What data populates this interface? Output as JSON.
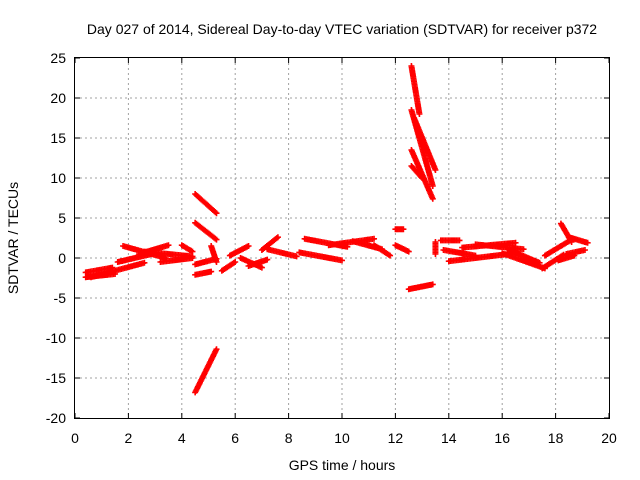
{
  "chart_data": {
    "type": "scatter",
    "title": "Day 027 of 2014, Sidereal Day-to-day VTEC variation (SDTVAR) for receiver p372",
    "xlabel": "GPS time / hours",
    "ylabel": "SDTVAR / TECUs",
    "xlim": [
      0,
      20
    ],
    "ylim": [
      -20,
      25
    ],
    "xticks": [
      "0",
      "2",
      "4",
      "6",
      "8",
      "10",
      "12",
      "14",
      "16",
      "18",
      "20"
    ],
    "yticks": [
      "25",
      "20",
      "15",
      "10",
      "5",
      "0",
      "-5",
      "-10",
      "-15",
      "-20"
    ],
    "grid": true,
    "marker": "+",
    "color": "#ff0000",
    "series": [
      {
        "name": "p372",
        "segments": [
          {
            "x": [
              0.4,
              1.4
            ],
            "y": [
              -1.8,
              -1.2
            ]
          },
          {
            "x": [
              0.4,
              1.5
            ],
            "y": [
              -2.4,
              -2.0
            ]
          },
          {
            "x": [
              0.6,
              2.6
            ],
            "y": [
              -2.4,
              -0.6
            ]
          },
          {
            "x": [
              1.6,
              3.0
            ],
            "y": [
              -0.5,
              0.6
            ]
          },
          {
            "x": [
              1.8,
              3.4
            ],
            "y": [
              1.5,
              0.0
            ]
          },
          {
            "x": [
              2.6,
              4.4
            ],
            "y": [
              0.8,
              0.2
            ]
          },
          {
            "x": [
              2.4,
              3.5
            ],
            "y": [
              0.5,
              1.6
            ]
          },
          {
            "x": [
              3.2,
              4.4
            ],
            "y": [
              -0.5,
              0.0
            ]
          },
          {
            "x": [
              4.0,
              4.4
            ],
            "y": [
              1.6,
              0.8
            ]
          },
          {
            "x": [
              4.5,
              5.3
            ],
            "y": [
              8.0,
              5.6
            ]
          },
          {
            "x": [
              4.5,
              5.3
            ],
            "y": [
              4.4,
              2.3
            ]
          },
          {
            "x": [
              4.5,
              5.3
            ],
            "y": [
              -0.8,
              -0.1
            ]
          },
          {
            "x": [
              4.5,
              5.1
            ],
            "y": [
              -2.1,
              -1.7
            ]
          },
          {
            "x": [
              4.5,
              5.3
            ],
            "y": [
              -16.8,
              -11.4
            ]
          },
          {
            "x": [
              5.1,
              5.3
            ],
            "y": [
              1.5,
              -0.5
            ]
          },
          {
            "x": [
              5.5,
              6.0
            ],
            "y": [
              -1.6,
              -0.5
            ]
          },
          {
            "x": [
              5.8,
              6.5
            ],
            "y": [
              0.3,
              1.5
            ]
          },
          {
            "x": [
              6.2,
              7.0
            ],
            "y": [
              0.0,
              -1.2
            ]
          },
          {
            "x": [
              6.5,
              7.2
            ],
            "y": [
              -1.0,
              -0.2
            ]
          },
          {
            "x": [
              7.0,
              7.6
            ],
            "y": [
              1.0,
              2.6
            ]
          },
          {
            "x": [
              7.2,
              8.3
            ],
            "y": [
              1.1,
              0.2
            ]
          },
          {
            "x": [
              8.6,
              10.2
            ],
            "y": [
              2.4,
              1.4
            ]
          },
          {
            "x": [
              8.4,
              10.0
            ],
            "y": [
              0.7,
              -0.3
            ]
          },
          {
            "x": [
              9.5,
              11.2
            ],
            "y": [
              1.6,
              2.4
            ]
          },
          {
            "x": [
              10.4,
              11.5
            ],
            "y": [
              2.1,
              1.1
            ]
          },
          {
            "x": [
              11.2,
              11.8
            ],
            "y": [
              1.6,
              0.3
            ]
          },
          {
            "x": [
              12.0,
              12.5
            ],
            "y": [
              1.6,
              0.8
            ]
          },
          {
            "x": [
              12.0,
              12.3
            ],
            "y": [
              3.6,
              3.6
            ]
          },
          {
            "x": [
              12.6,
              12.9
            ],
            "y": [
              24.0,
              18.0
            ]
          },
          {
            "x": [
              12.6,
              13.4
            ],
            "y": [
              18.5,
              9.0
            ]
          },
          {
            "x": [
              12.7,
              13.5
            ],
            "y": [
              17.5,
              11.0
            ]
          },
          {
            "x": [
              12.6,
              13.4
            ],
            "y": [
              13.5,
              7.4
            ]
          },
          {
            "x": [
              12.6,
              13.0
            ],
            "y": [
              11.5,
              10.0
            ]
          },
          {
            "x": [
              12.5,
              13.4
            ],
            "y": [
              -3.9,
              -3.3
            ]
          },
          {
            "x": [
              13.5,
              13.5
            ],
            "y": [
              2.0,
              0.5
            ]
          },
          {
            "x": [
              13.7,
              14.4
            ],
            "y": [
              2.2,
              2.2
            ]
          },
          {
            "x": [
              13.8,
              15.0
            ],
            "y": [
              1.0,
              0.3
            ]
          },
          {
            "x": [
              14.0,
              16.5
            ],
            "y": [
              -0.4,
              0.6
            ]
          },
          {
            "x": [
              14.5,
              16.5
            ],
            "y": [
              1.3,
              1.9
            ]
          },
          {
            "x": [
              15.0,
              16.8
            ],
            "y": [
              1.7,
              1.1
            ]
          },
          {
            "x": [
              16.0,
              17.6
            ],
            "y": [
              0.6,
              -1.3
            ]
          },
          {
            "x": [
              16.2,
              17.4
            ],
            "y": [
              1.1,
              -0.6
            ]
          },
          {
            "x": [
              17.5,
              18.3
            ],
            "y": [
              -1.3,
              0.4
            ]
          },
          {
            "x": [
              17.6,
              18.6
            ],
            "y": [
              0.3,
              2.3
            ]
          },
          {
            "x": [
              18.2,
              18.6
            ],
            "y": [
              4.3,
              2.0
            ]
          },
          {
            "x": [
              18.5,
              19.2
            ],
            "y": [
              2.6,
              1.9
            ]
          },
          {
            "x": [
              18.4,
              19.1
            ],
            "y": [
              0.5,
              1.0
            ]
          },
          {
            "x": [
              18.1,
              18.7
            ],
            "y": [
              -0.3,
              0.3
            ]
          }
        ]
      }
    ]
  }
}
